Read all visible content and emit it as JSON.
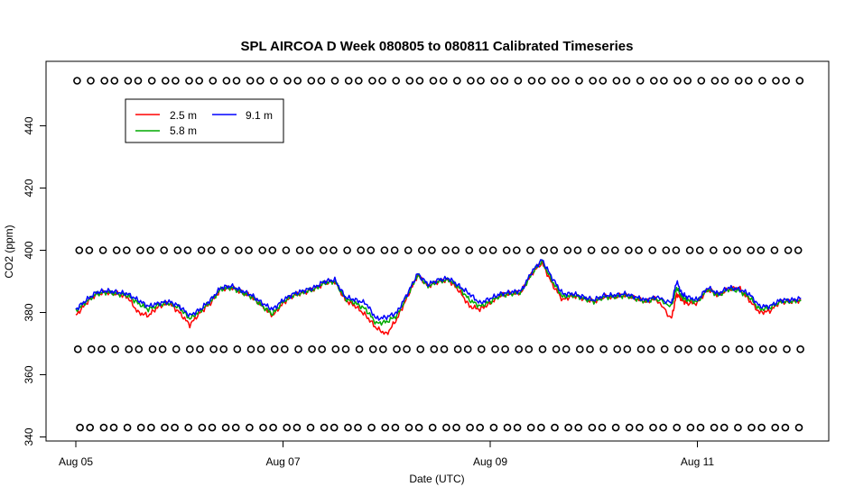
{
  "chart_data": {
    "type": "line",
    "title": "SPL AIRCOA D  Week 080805 to 080811  Calibrated Timeseries",
    "xlabel": "Date (UTC)",
    "ylabel": "CO2 (ppm)",
    "x_unit": "days",
    "xlim": [
      0,
      7.2
    ],
    "ylim": [
      340,
      458
    ],
    "x_ticks": [
      {
        "value": 0,
        "label": "Aug 05"
      },
      {
        "value": 2,
        "label": "Aug 07"
      },
      {
        "value": 4,
        "label": "Aug 09"
      },
      {
        "value": 6,
        "label": "Aug 11"
      }
    ],
    "y_ticks": [
      340,
      360,
      380,
      400,
      420,
      440
    ],
    "legend": {
      "placement": "top-left",
      "entries": [
        {
          "label": "2.5 m",
          "color": "#ff0000"
        },
        {
          "label": "9.1 m",
          "color": "#0000ff"
        },
        {
          "label": "5.8 m",
          "color": "#00aa00"
        }
      ]
    },
    "series": [
      {
        "name": "9.1 m",
        "color": "#0000ff",
        "points": [
          [
            0,
            381
          ],
          [
            0.1,
            384
          ],
          [
            0.2,
            386.5
          ],
          [
            0.3,
            387
          ],
          [
            0.4,
            386.5
          ],
          [
            0.5,
            386
          ],
          [
            0.6,
            384
          ],
          [
            0.7,
            382
          ],
          [
            0.8,
            383
          ],
          [
            0.9,
            383.5
          ],
          [
            1.0,
            382
          ],
          [
            1.1,
            379
          ],
          [
            1.2,
            381
          ],
          [
            1.3,
            384
          ],
          [
            1.4,
            388
          ],
          [
            1.5,
            388.5
          ],
          [
            1.6,
            387
          ],
          [
            1.7,
            385.5
          ],
          [
            1.8,
            383
          ],
          [
            1.9,
            381
          ],
          [
            2.0,
            384
          ],
          [
            2.1,
            386
          ],
          [
            2.2,
            387
          ],
          [
            2.3,
            388
          ],
          [
            2.4,
            390
          ],
          [
            2.5,
            390.5
          ],
          [
            2.6,
            385
          ],
          [
            2.7,
            384
          ],
          [
            2.8,
            383
          ],
          [
            2.9,
            378
          ],
          [
            3.0,
            378.5
          ],
          [
            3.1,
            380
          ],
          [
            3.2,
            386
          ],
          [
            3.3,
            392.5
          ],
          [
            3.4,
            389
          ],
          [
            3.5,
            390.5
          ],
          [
            3.6,
            391
          ],
          [
            3.7,
            388.5
          ],
          [
            3.8,
            386
          ],
          [
            3.9,
            383
          ],
          [
            4.0,
            384.5
          ],
          [
            4.1,
            386
          ],
          [
            4.2,
            386.5
          ],
          [
            4.3,
            387
          ],
          [
            4.4,
            393
          ],
          [
            4.5,
            397
          ],
          [
            4.6,
            391
          ],
          [
            4.7,
            386
          ],
          [
            4.8,
            386
          ],
          [
            4.9,
            385
          ],
          [
            5.0,
            384
          ],
          [
            5.1,
            385.5
          ],
          [
            5.2,
            385.5
          ],
          [
            5.3,
            386
          ],
          [
            5.4,
            385
          ],
          [
            5.5,
            384
          ],
          [
            5.6,
            385
          ],
          [
            5.75,
            383
          ],
          [
            5.8,
            390
          ],
          [
            5.85,
            386
          ],
          [
            5.9,
            385
          ],
          [
            6.0,
            384
          ],
          [
            6.1,
            388
          ],
          [
            6.2,
            386
          ],
          [
            6.3,
            388
          ],
          [
            6.4,
            387.5
          ],
          [
            6.5,
            386
          ],
          [
            6.6,
            382
          ],
          [
            6.7,
            382
          ],
          [
            6.8,
            384
          ],
          [
            6.9,
            384
          ],
          [
            7.0,
            384.5
          ]
        ]
      },
      {
        "name": "5.8 m",
        "color": "#00aa00",
        "points": [
          [
            0,
            380.5
          ],
          [
            0.1,
            383.5
          ],
          [
            0.2,
            386
          ],
          [
            0.3,
            386.5
          ],
          [
            0.4,
            386
          ],
          [
            0.5,
            385.5
          ],
          [
            0.6,
            383
          ],
          [
            0.7,
            381
          ],
          [
            0.8,
            382.5
          ],
          [
            0.9,
            383
          ],
          [
            1.0,
            381.5
          ],
          [
            1.1,
            378
          ],
          [
            1.2,
            380.5
          ],
          [
            1.3,
            383.5
          ],
          [
            1.4,
            387.5
          ],
          [
            1.5,
            388
          ],
          [
            1.6,
            386.5
          ],
          [
            1.7,
            385
          ],
          [
            1.8,
            382
          ],
          [
            1.9,
            379.5
          ],
          [
            2.0,
            383.5
          ],
          [
            2.1,
            385.5
          ],
          [
            2.2,
            386.5
          ],
          [
            2.3,
            387.5
          ],
          [
            2.4,
            389.5
          ],
          [
            2.5,
            390
          ],
          [
            2.6,
            384.5
          ],
          [
            2.7,
            383
          ],
          [
            2.8,
            381
          ],
          [
            2.9,
            376.5
          ],
          [
            3.0,
            377
          ],
          [
            3.1,
            379
          ],
          [
            3.2,
            385.5
          ],
          [
            3.3,
            392
          ],
          [
            3.4,
            388.5
          ],
          [
            3.5,
            390
          ],
          [
            3.6,
            390.5
          ],
          [
            3.7,
            388
          ],
          [
            3.8,
            384
          ],
          [
            3.9,
            382
          ],
          [
            4.0,
            383.5
          ],
          [
            4.1,
            385.5
          ],
          [
            4.2,
            386
          ],
          [
            4.3,
            386.5
          ],
          [
            4.4,
            392.5
          ],
          [
            4.5,
            396.5
          ],
          [
            4.6,
            390
          ],
          [
            4.7,
            385
          ],
          [
            4.8,
            385.5
          ],
          [
            4.9,
            384.5
          ],
          [
            5.0,
            383.5
          ],
          [
            5.1,
            385
          ],
          [
            5.2,
            385
          ],
          [
            5.3,
            385.5
          ],
          [
            5.4,
            384.5
          ],
          [
            5.5,
            383.5
          ],
          [
            5.6,
            384.5
          ],
          [
            5.75,
            382
          ],
          [
            5.8,
            388
          ],
          [
            5.85,
            385
          ],
          [
            5.9,
            384
          ],
          [
            6.0,
            383.5
          ],
          [
            6.1,
            387.5
          ],
          [
            6.2,
            385.5
          ],
          [
            6.3,
            387.5
          ],
          [
            6.4,
            387
          ],
          [
            6.5,
            385
          ],
          [
            6.6,
            381
          ],
          [
            6.7,
            381.5
          ],
          [
            6.8,
            383.5
          ],
          [
            6.9,
            383.5
          ],
          [
            7.0,
            384
          ]
        ]
      },
      {
        "name": "2.5 m",
        "color": "#ff0000",
        "points": [
          [
            0,
            379
          ],
          [
            0.1,
            383
          ],
          [
            0.2,
            386
          ],
          [
            0.3,
            386.5
          ],
          [
            0.4,
            386
          ],
          [
            0.5,
            385
          ],
          [
            0.6,
            380
          ],
          [
            0.7,
            379
          ],
          [
            0.8,
            382
          ],
          [
            0.9,
            383
          ],
          [
            1.0,
            380
          ],
          [
            1.1,
            376
          ],
          [
            1.2,
            380
          ],
          [
            1.3,
            383
          ],
          [
            1.4,
            387.5
          ],
          [
            1.5,
            388
          ],
          [
            1.6,
            386.5
          ],
          [
            1.7,
            385
          ],
          [
            1.8,
            382
          ],
          [
            1.9,
            379
          ],
          [
            2.0,
            383
          ],
          [
            2.1,
            385.5
          ],
          [
            2.2,
            386.5
          ],
          [
            2.3,
            387.5
          ],
          [
            2.4,
            389.5
          ],
          [
            2.5,
            390
          ],
          [
            2.6,
            384
          ],
          [
            2.7,
            382
          ],
          [
            2.8,
            379
          ],
          [
            2.9,
            375
          ],
          [
            3.0,
            373
          ],
          [
            3.1,
            378
          ],
          [
            3.2,
            385
          ],
          [
            3.3,
            392
          ],
          [
            3.4,
            388.5
          ],
          [
            3.5,
            390
          ],
          [
            3.6,
            390.5
          ],
          [
            3.7,
            387
          ],
          [
            3.8,
            382
          ],
          [
            3.9,
            381
          ],
          [
            4.0,
            383
          ],
          [
            4.1,
            385.5
          ],
          [
            4.2,
            386
          ],
          [
            4.3,
            386.5
          ],
          [
            4.4,
            392.5
          ],
          [
            4.5,
            396
          ],
          [
            4.6,
            389
          ],
          [
            4.7,
            384
          ],
          [
            4.8,
            385.5
          ],
          [
            4.9,
            384.5
          ],
          [
            5.0,
            383.5
          ],
          [
            5.1,
            385
          ],
          [
            5.2,
            385
          ],
          [
            5.3,
            385.5
          ],
          [
            5.4,
            384.5
          ],
          [
            5.5,
            383.5
          ],
          [
            5.6,
            384.5
          ],
          [
            5.75,
            378
          ],
          [
            5.8,
            386
          ],
          [
            5.85,
            384
          ],
          [
            5.9,
            383
          ],
          [
            6.0,
            383
          ],
          [
            6.1,
            387.5
          ],
          [
            6.2,
            385.5
          ],
          [
            6.3,
            387.5
          ],
          [
            6.4,
            388
          ],
          [
            6.5,
            384
          ],
          [
            6.6,
            380
          ],
          [
            6.7,
            380.5
          ],
          [
            6.8,
            383.5
          ],
          [
            6.9,
            383.5
          ],
          [
            7.0,
            384
          ]
        ]
      }
    ],
    "marker_rows": {
      "symbol": "o",
      "y_values": [
        454.5,
        400,
        368.2,
        343
      ]
    }
  }
}
